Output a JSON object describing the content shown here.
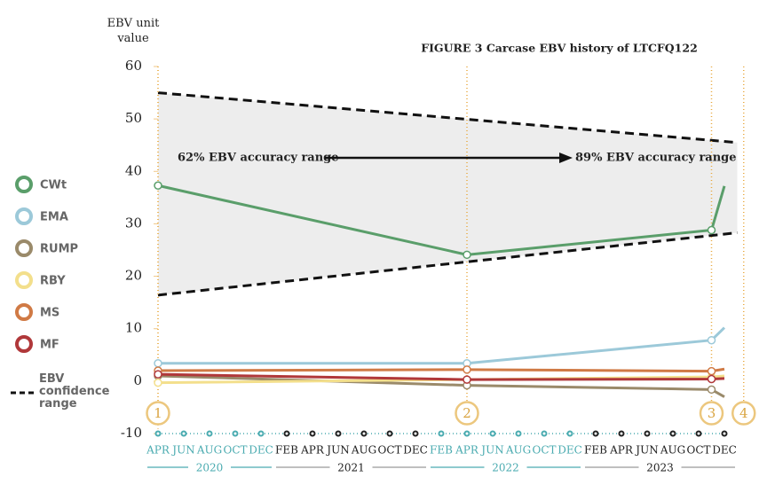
{
  "chart_data": {
    "type": "line",
    "title": "FIGURE 3   Carcase EBV history of LTCFQ122",
    "y_label": "EBV unit value",
    "ylim": [
      -10,
      60
    ],
    "yticks": [
      60,
      50,
      40,
      30,
      20,
      10,
      0,
      -10
    ],
    "xlim": [
      0,
      44
    ],
    "xticks": [
      {
        "value": 0,
        "label": "APR"
      },
      {
        "value": 2,
        "label": "JUN"
      },
      {
        "value": 4,
        "label": "AUG"
      },
      {
        "value": 6,
        "label": "OCT"
      },
      {
        "value": 8,
        "label": "DEC"
      },
      {
        "value": 10,
        "label": "FEB"
      },
      {
        "value": 12,
        "label": "APR"
      },
      {
        "value": 14,
        "label": "JUN"
      },
      {
        "value": 16,
        "label": "AUG"
      },
      {
        "value": 18,
        "label": "OCT"
      },
      {
        "value": 20,
        "label": "DEC"
      },
      {
        "value": 22,
        "label": "FEB"
      },
      {
        "value": 24,
        "label": "APR"
      },
      {
        "value": 26,
        "label": "JUN"
      },
      {
        "value": 28,
        "label": "AUG"
      },
      {
        "value": 30,
        "label": "OCT"
      },
      {
        "value": 32,
        "label": "DEC"
      },
      {
        "value": 34,
        "label": "FEB"
      },
      {
        "value": 36,
        "label": "APR"
      },
      {
        "value": 38,
        "label": "JUN"
      },
      {
        "value": 40,
        "label": "AUG"
      },
      {
        "value": 42,
        "label": "OCT"
      },
      {
        "value": 44,
        "label": "DEC"
      }
    ],
    "years": [
      {
        "label": "2020",
        "start": 0,
        "end": 8,
        "color": "#4aabb0"
      },
      {
        "label": "2021",
        "start": 10,
        "end": 20,
        "color": "#222222"
      },
      {
        "label": "2022",
        "start": 22,
        "end": 32,
        "color": "#4aabb0"
      },
      {
        "label": "2023",
        "start": 34,
        "end": 44,
        "color": "#222222"
      }
    ],
    "x": [
      0,
      24,
      43,
      44
    ],
    "series": [
      {
        "name": "CWt",
        "color": "#5a9e6a",
        "values": [
          37.3,
          24.1,
          28.8,
          37.2
        ]
      },
      {
        "name": "EMA",
        "color": "#9cc9d9",
        "values": [
          3.4,
          3.4,
          7.8,
          10.2
        ]
      },
      {
        "name": "RUMP",
        "color": "#9a8a6a",
        "values": [
          1.0,
          -0.8,
          -1.6,
          -3.0
        ]
      },
      {
        "name": "RBY",
        "color": "#f3df8c",
        "values": [
          -0.3,
          0.3,
          0.8,
          1.0
        ]
      },
      {
        "name": "MS",
        "color": "#d07a45",
        "values": [
          2.0,
          2.2,
          1.9,
          2.3
        ]
      },
      {
        "name": "MF",
        "color": "#b0383a",
        "values": [
          1.3,
          0.3,
          0.4,
          0.5
        ]
      }
    ],
    "band": {
      "name": "EBV confidence range",
      "x": [
        0,
        45
      ],
      "upper": [
        55,
        45.5
      ],
      "lower": [
        16.4,
        28.3
      ],
      "color": "#e8e8e8"
    },
    "milestones": [
      {
        "label": "1",
        "x": 0
      },
      {
        "label": "2",
        "x": 24
      },
      {
        "label": "3",
        "x": 43
      },
      {
        "label": "4",
        "x": 45.5
      }
    ],
    "annotations": {
      "left": "62% EBV accuracy range",
      "right": "89% EBV accuracy range"
    }
  }
}
